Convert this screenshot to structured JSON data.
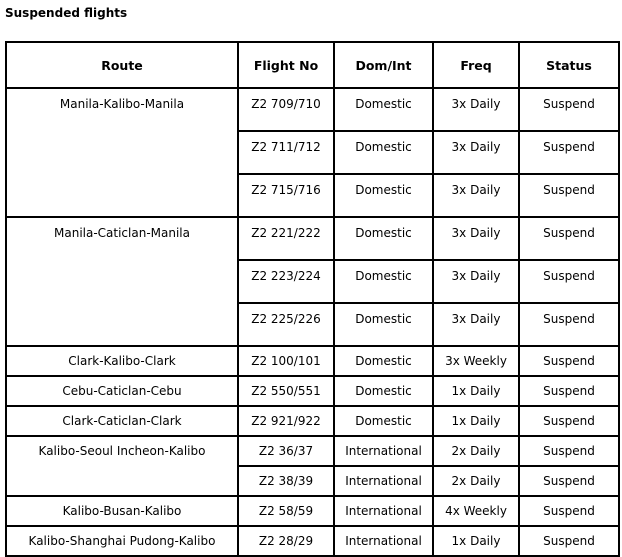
{
  "title": "Suspended flights",
  "headers": {
    "route": "Route",
    "flight": "Flight No",
    "type": "Dom/Int",
    "freq": "Freq",
    "status": "Status"
  },
  "groups": [
    {
      "route": "Manila-Kalibo-Manila",
      "flights": [
        {
          "flight": "Z2 709/710",
          "type": "Domestic",
          "freq": "3x Daily",
          "status": "Suspend"
        },
        {
          "flight": "Z2 711/712",
          "type": "Domestic",
          "freq": "3x Daily",
          "status": "Suspend"
        },
        {
          "flight": "Z2 715/716",
          "type": "Domestic",
          "freq": "3x Daily",
          "status": "Suspend"
        }
      ]
    },
    {
      "route": "Manila-Caticlan-Manila",
      "flights": [
        {
          "flight": "Z2 221/222",
          "type": "Domestic",
          "freq": "3x Daily",
          "status": "Suspend"
        },
        {
          "flight": "Z2 223/224",
          "type": "Domestic",
          "freq": "3x Daily",
          "status": "Suspend"
        },
        {
          "flight": "Z2 225/226",
          "type": "Domestic",
          "freq": "3x Daily",
          "status": "Suspend"
        }
      ]
    },
    {
      "route": "Clark-Kalibo-Clark",
      "flights": [
        {
          "flight": "Z2 100/101",
          "type": "Domestic",
          "freq": "3x Weekly",
          "status": "Suspend"
        }
      ]
    },
    {
      "route": "Cebu-Caticlan-Cebu",
      "flights": [
        {
          "flight": "Z2 550/551",
          "type": "Domestic",
          "freq": "1x Daily",
          "status": "Suspend"
        }
      ]
    },
    {
      "route": "Clark-Caticlan-Clark",
      "flights": [
        {
          "flight": "Z2 921/922",
          "type": "Domestic",
          "freq": "1x Daily",
          "status": "Suspend"
        }
      ]
    },
    {
      "route": "Kalibo-Seoul Incheon-Kalibo",
      "flights": [
        {
          "flight": "Z2 36/37",
          "type": "International",
          "freq": "2x Daily",
          "status": "Suspend"
        },
        {
          "flight": "Z2 38/39",
          "type": "International",
          "freq": "2x Daily",
          "status": "Suspend"
        }
      ]
    },
    {
      "route": "Kalibo-Busan-Kalibo",
      "flights": [
        {
          "flight": "Z2 58/59",
          "type": "International",
          "freq": "4x Weekly",
          "status": "Suspend"
        }
      ]
    },
    {
      "route": "Kalibo-Shanghai Pudong-Kalibo",
      "flights": [
        {
          "flight": "Z2 28/29",
          "type": "International",
          "freq": "1x Daily",
          "status": "Suspend"
        }
      ]
    }
  ]
}
